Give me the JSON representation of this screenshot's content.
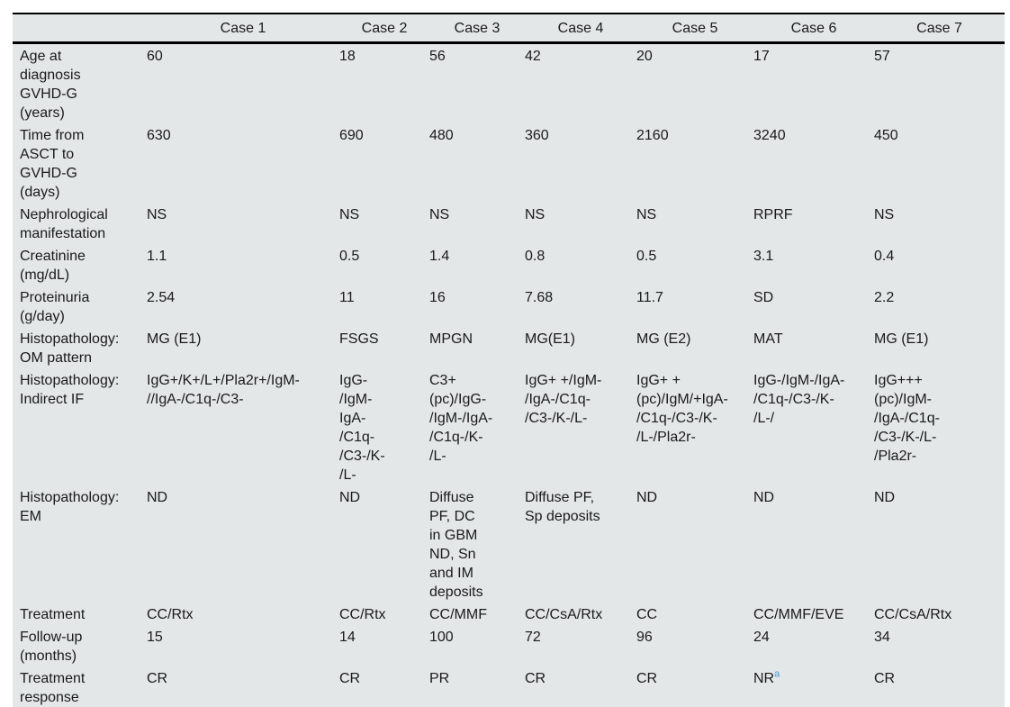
{
  "table": {
    "columns": [
      "",
      "Case 1",
      "Case 2",
      "Case 3",
      "Case 4",
      "Case 5",
      "Case 6",
      "Case 7"
    ],
    "rows": [
      {
        "label": "Age at\ndiagnosis\nGVHD-G\n(years)",
        "cells": [
          "60",
          "18",
          "56",
          "42",
          "20",
          "17",
          "57"
        ]
      },
      {
        "label": "Time from\nASCT to\nGVHD-G\n(days)",
        "cells": [
          "630",
          "690",
          "480",
          "360",
          "2160",
          "3240",
          "450"
        ]
      },
      {
        "label": "Nephrological\nmanifestation",
        "cells": [
          "NS",
          "NS",
          "NS",
          "NS",
          "NS",
          "RPRF",
          "NS"
        ]
      },
      {
        "label": "Creatinine\n(mg/dL)",
        "cells": [
          "1.1",
          "0.5",
          "1.4",
          "0.8",
          "0.5",
          "3.1",
          "0.4"
        ]
      },
      {
        "label": "Proteinuria\n(g/day)",
        "cells": [
          "2.54",
          "11",
          "16",
          "7.68",
          "11.7",
          "SD",
          "2.2"
        ]
      },
      {
        "label": "Histopathology:\nOM pattern",
        "cells": [
          "MG (E1)",
          "FSGS",
          "MPGN",
          "MG(E1)",
          "MG (E2)",
          "MAT",
          "MG (E1)"
        ]
      },
      {
        "label": "Histopathology:\nIndirect IF",
        "cells": [
          "IgG+/K+/L+/Pla2r+/IgM-\n//IgA-/C1q-/C3-",
          "IgG-\n/IgM-\nIgA-\n/C1q-\n/C3-/K-\n/L-",
          "C3+\n(pc)/IgG-\n/IgM-/IgA-\n/C1q-/K-\n/L-",
          "IgG+ +/IgM-\n/IgA-/C1q-\n/C3-/K-/L-",
          "IgG+ +\n(pc)/IgM/+IgA-\n/C1q-/C3-/K-\n/L-/Pla2r-",
          "IgG-/IgM-/IgA-\n/C1q-/C3-/K-\n/L-/",
          "IgG+++\n(pc)/IgM-\n/IgA-/C1q-\n/C3-/K-/L-\n/Pla2r-"
        ]
      },
      {
        "label": "Histopathology:\nEM",
        "cells": [
          "ND",
          "ND",
          "Diffuse\nPF, DC\nin GBM\nND, Sn\nand IM\ndeposits",
          "Diffuse PF,\nSp deposits",
          "ND",
          "ND",
          "ND"
        ]
      },
      {
        "label": "Treatment",
        "cells": [
          "CC/Rtx",
          "CC/Rtx",
          "CC/MMF",
          "CC/CsA/Rtx",
          "CC",
          "CC/MMF/EVE",
          "CC/CsA/Rtx"
        ]
      },
      {
        "label": "Follow-up\n(months)",
        "cells": [
          "15",
          "14",
          "100",
          "72",
          "96",
          "24",
          "34"
        ]
      },
      {
        "label": "Treatment\nresponse",
        "cells": [
          "CR",
          "CR",
          "PR",
          "CR",
          "CR",
          {
            "text": "NR",
            "sup": "a"
          },
          "CR"
        ]
      }
    ],
    "colors": {
      "table_background": "#e3e7e8",
      "rule": "#000000",
      "text": "#1a1a1a",
      "footnote_marker": "#3d9fd6"
    }
  }
}
